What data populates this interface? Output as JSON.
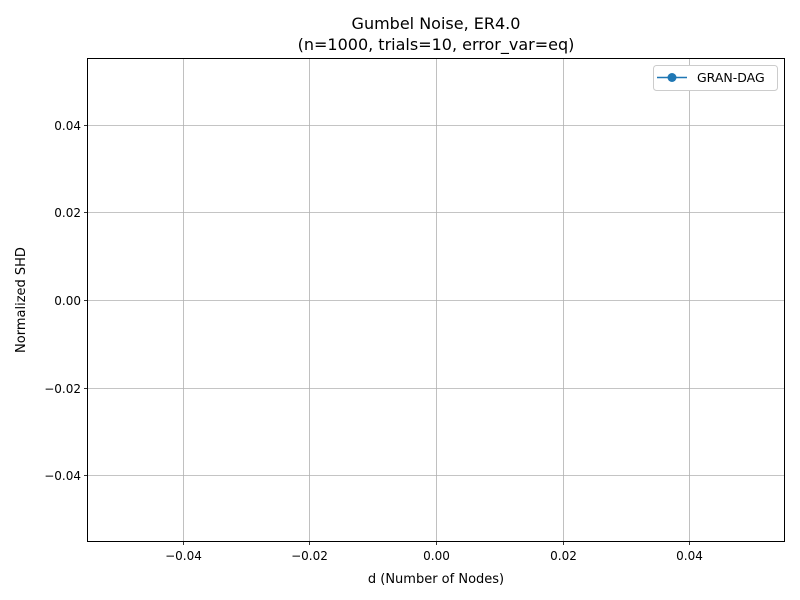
{
  "chart_data": {
    "type": "line",
    "title": "Gumbel Noise, ER4.0",
    "subtitle": "(n=1000, trials=10, error_var=eq)",
    "xlabel": "d (Number of Nodes)",
    "ylabel": "Normalized SHD",
    "xlim": [
      -0.055,
      0.055
    ],
    "ylim": [
      -0.055,
      0.055
    ],
    "xticks": [
      -0.04,
      -0.02,
      0.0,
      0.02,
      0.04
    ],
    "yticks": [
      -0.04,
      -0.02,
      0.0,
      0.02,
      0.04
    ],
    "xtick_labels": [
      "−0.04",
      "−0.02",
      "0.00",
      "0.02",
      "0.04"
    ],
    "ytick_labels": [
      "−0.04",
      "−0.02",
      "0.00",
      "0.02",
      "0.04"
    ],
    "grid": true,
    "legend_position": "top-right",
    "series": [
      {
        "name": "GRAN-DAG",
        "color": "#1f77b4",
        "marker": "circle",
        "x": [],
        "y": []
      }
    ]
  }
}
